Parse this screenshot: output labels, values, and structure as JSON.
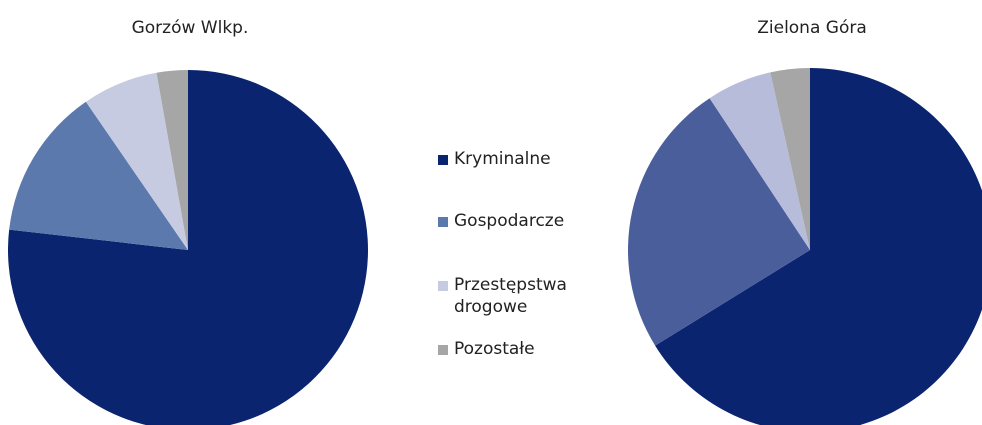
{
  "chart_data": [
    {
      "type": "pie",
      "title": "Gorzów Wlkp.",
      "categories": [
        "Kryminalne",
        "Gospodarcze",
        "Przestępstwa drogowe",
        "Pozostałe"
      ],
      "values": [
        76.8,
        13.6,
        6.8,
        2.8
      ],
      "colors": [
        "#0b2470",
        "#5b79ad",
        "#c7cbe1",
        "#a6a6a6"
      ]
    },
    {
      "type": "pie",
      "title": "Zielona Góra",
      "categories": [
        "Kryminalne",
        "Gospodarcze",
        "Przestępstwa drogowe",
        "Pozostałe"
      ],
      "values": [
        66.2,
        24.5,
        5.8,
        3.5
      ],
      "colors": [
        "#0b2470",
        "#4b5e9c",
        "#b8bcdb",
        "#a6a6a6"
      ]
    }
  ]
}
